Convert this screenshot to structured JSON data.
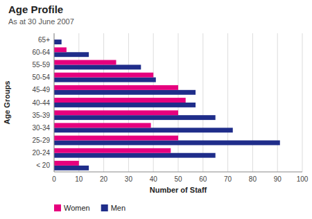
{
  "chart_data": {
    "type": "bar",
    "orientation": "horizontal",
    "title": "Age Profile",
    "subtitle": "As at 30 June 2007",
    "x_label": "Number of Staff",
    "y_label": "Age Groups",
    "categories": [
      "65+",
      "60-64",
      "55-59",
      "50-54",
      "45-49",
      "40-44",
      "35-39",
      "30-34",
      "25-29",
      "20-24",
      "< 20"
    ],
    "series": [
      {
        "name": "Men",
        "color": "#1f2d8a",
        "values": [
          3,
          14,
          35,
          41,
          57,
          57,
          65,
          72,
          91,
          65,
          14
        ]
      },
      {
        "name": "Women",
        "color": "#e6007e",
        "values": [
          0,
          5,
          25,
          40,
          50,
          53,
          50,
          39,
          50,
          47,
          10
        ]
      }
    ],
    "xlim": [
      0,
      100
    ],
    "xticks": [
      0,
      10,
      20,
      30,
      40,
      50,
      60,
      70,
      80,
      90,
      100
    ],
    "grid": true,
    "legend": "bottom"
  }
}
